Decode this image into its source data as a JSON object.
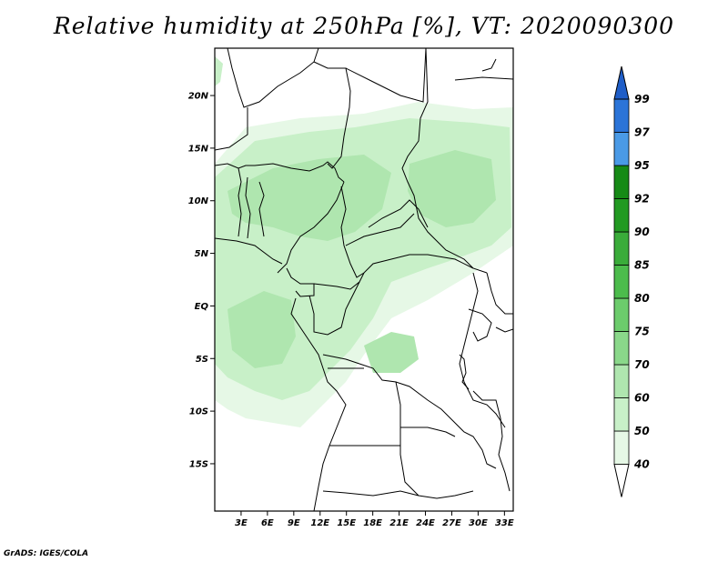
{
  "title": "Relative humidity at 250hPa [%], VT: 2020090300",
  "credit": "GrADS: IGES/COLA",
  "lat_axis": {
    "labels": [
      "20N",
      "15N",
      "10N",
      "5N",
      "EQ",
      "5S",
      "10S",
      "15S"
    ],
    "values": [
      20,
      15,
      10,
      5,
      0,
      -5,
      -10,
      -15
    ]
  },
  "lon_axis": {
    "labels": [
      "3E",
      "6E",
      "9E",
      "12E",
      "15E",
      "18E",
      "21E",
      "24E",
      "27E",
      "30E",
      "33E"
    ],
    "values": [
      3,
      6,
      9,
      12,
      15,
      18,
      21,
      24,
      27,
      30,
      33
    ]
  },
  "map_extent": {
    "lon_min": 0,
    "lon_max": 34,
    "lat_min": -19.5,
    "lat_max": 24.5
  },
  "colorbar": {
    "labels": [
      "40",
      "50",
      "60",
      "70",
      "75",
      "80",
      "85",
      "90",
      "92",
      "95",
      "97",
      "99"
    ],
    "colors": [
      "#ffffff",
      "#e6f8e6",
      "#c8f0c8",
      "#afe6af",
      "#8ad88a",
      "#6ccc6c",
      "#4cbc4c",
      "#3aac3a",
      "#229a22",
      "#168a16",
      "#4a9ae6",
      "#2b74d8",
      "#1f5ec8"
    ]
  },
  "shading_colors": {
    "rh_40_50": "#e6f8e6",
    "rh_50_60": "#c8f0c8",
    "rh_60_70": "#afe6af"
  }
}
